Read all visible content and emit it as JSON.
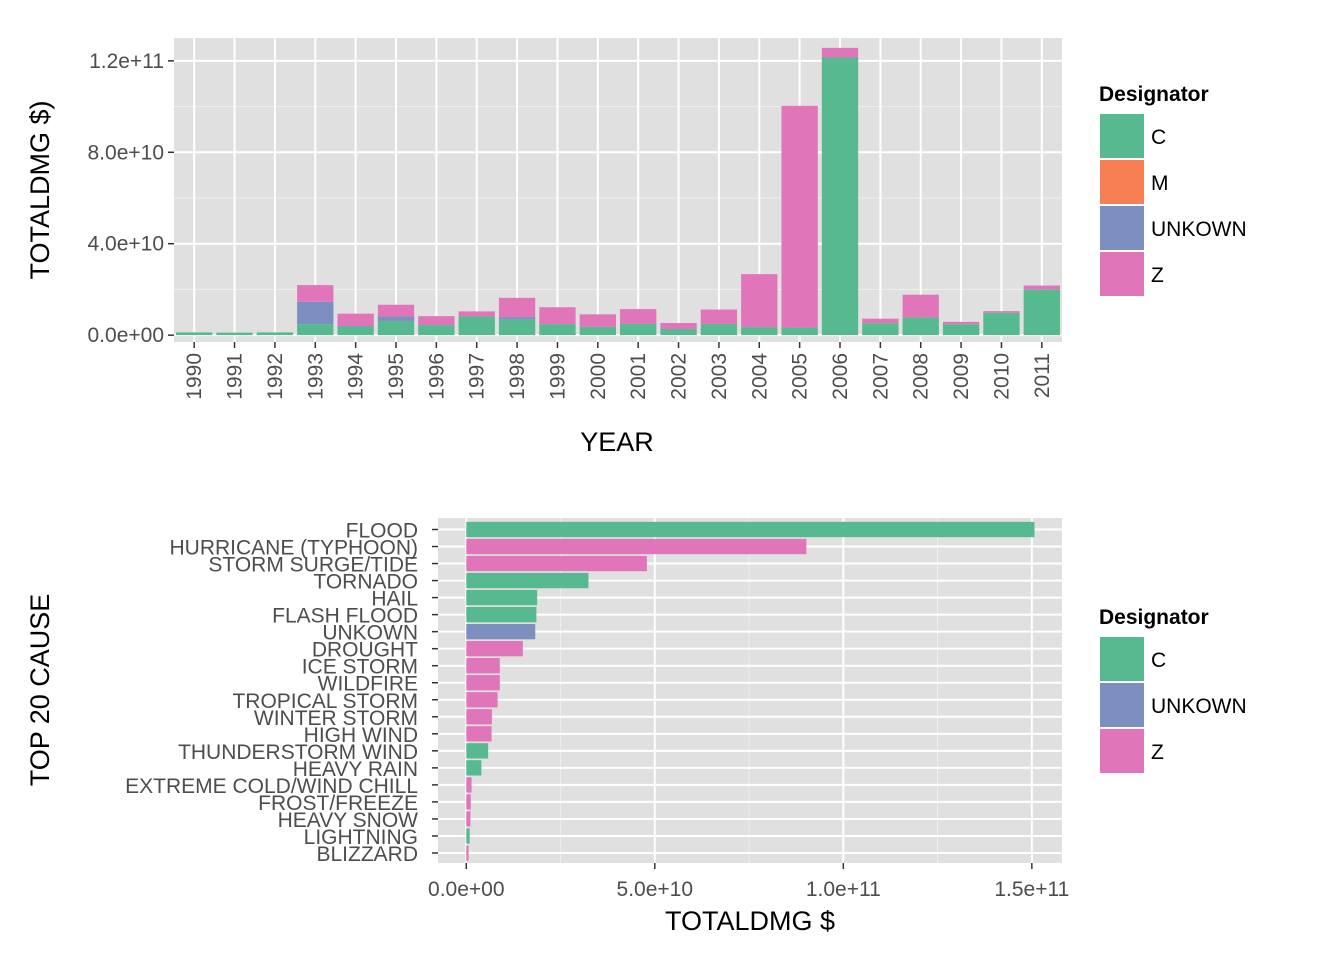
{
  "colors": {
    "C": "#56b990",
    "M": "#f87e53",
    "UNKOWN": "#7d8fc0",
    "Z": "#e076b9",
    "panel_bg": "#e0e0e0",
    "grid_major": "#ffffff",
    "grid_minor": "#efefef",
    "tick_text": "#4d4d4d"
  },
  "chart_data": [
    {
      "type": "bar",
      "stacked": true,
      "orientation": "vertical",
      "xlabel": "YEAR",
      "ylabel": "TOTALDMG $)",
      "ylim": [
        -3000000000,
        130000000000
      ],
      "y_ticks": [
        0,
        40000000000,
        80000000000,
        120000000000
      ],
      "y_tick_labels": [
        "0.0e+00",
        "4.0e+10",
        "8.0e+10",
        "1.2e+11"
      ],
      "grid": true,
      "legend_title": "Designator",
      "legend_position": "right",
      "legend_items": [
        "C",
        "M",
        "UNKOWN",
        "Z"
      ],
      "categories": [
        "1990",
        "1991",
        "1992",
        "1993",
        "1994",
        "1995",
        "1996",
        "1997",
        "1998",
        "1999",
        "2000",
        "2001",
        "2002",
        "2003",
        "2004",
        "2005",
        "2006",
        "2007",
        "2008",
        "2009",
        "2010",
        "2011"
      ],
      "series": [
        {
          "name": "C",
          "values": [
            1200000000,
            1100000000,
            1200000000,
            4800000000,
            3800000000,
            6200000000,
            4400000000,
            8200000000,
            6900000000,
            4800000000,
            3600000000,
            4900000000,
            2700000000,
            4900000000,
            3500000000,
            3300000000,
            121500000000,
            5200000000,
            7800000000,
            4800000000,
            9800000000,
            19900000000
          ]
        },
        {
          "name": "M",
          "values": [
            0,
            0,
            0,
            0,
            0,
            0,
            0,
            0,
            0,
            0,
            0,
            0,
            0,
            0,
            0,
            0,
            0,
            0,
            0,
            0,
            0,
            0
          ]
        },
        {
          "name": "UNKOWN",
          "values": [
            0,
            0,
            0,
            9800000000,
            200000000,
            2000000000,
            0,
            0,
            1000000000,
            0,
            0,
            0,
            0,
            0,
            0,
            0,
            0,
            0,
            0,
            0,
            0,
            0
          ]
        },
        {
          "name": "Z",
          "values": [
            0,
            0,
            0,
            7300000000,
            5400000000,
            5100000000,
            3900000000,
            2200000000,
            8400000000,
            7400000000,
            5500000000,
            6500000000,
            2600000000,
            6300000000,
            23200000000,
            97000000000,
            4200000000,
            2000000000,
            9900000000,
            1000000000,
            700000000,
            1800000000
          ]
        }
      ]
    },
    {
      "type": "bar",
      "orientation": "horizontal",
      "xlabel": "TOTALDMG $",
      "ylabel": "TOP 20 CAUSE",
      "xlim": [
        -7500000000,
        158000000000
      ],
      "x_ticks": [
        0,
        50000000000,
        100000000000,
        150000000000
      ],
      "x_tick_labels": [
        "0.0e+00",
        "5.0e+10",
        "1.0e+11",
        "1.5e+11"
      ],
      "grid": true,
      "legend_title": "Designator",
      "legend_position": "right",
      "legend_items": [
        "C",
        "UNKOWN",
        "Z"
      ],
      "categories": [
        "FLOOD",
        "HURRICANE (TYPHOON)",
        "STORM SURGE/TIDE",
        "TORNADO",
        "HAIL",
        "FLASH FLOOD",
        "UNKOWN",
        "DROUGHT",
        "ICE STORM",
        "WILDFIRE",
        "TROPICAL STORM",
        "WINTER STORM",
        "HIGH WIND",
        "THUNDERSTORM WIND",
        "HEAVY RAIN",
        "EXTREME COLD/WIND CHILL",
        "FROST/FREEZE",
        "HEAVY SNOW",
        "LIGHTNING",
        "BLIZZARD"
      ],
      "values": [
        150700000000,
        90200000000,
        47900000000,
        32400000000,
        18800000000,
        18600000000,
        18300000000,
        15000000000,
        8900000000,
        8900000000,
        8300000000,
        6800000000,
        6700000000,
        5800000000,
        4000000000,
        1400000000,
        1200000000,
        1100000000,
        900000000,
        600000000
      ],
      "designators": [
        "C",
        "Z",
        "Z",
        "C",
        "C",
        "C",
        "UNKOWN",
        "Z",
        "Z",
        "Z",
        "Z",
        "Z",
        "Z",
        "C",
        "C",
        "Z",
        "Z",
        "Z",
        "C",
        "Z"
      ]
    }
  ]
}
